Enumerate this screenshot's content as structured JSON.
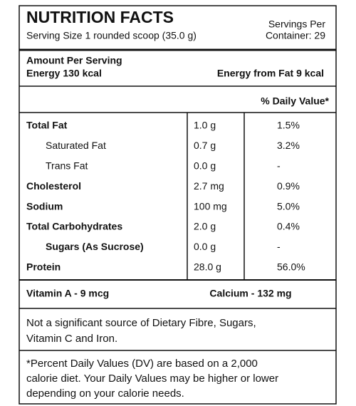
{
  "header": {
    "title": "NUTRITION FACTS",
    "serving_size": "Serving Size 1 rounded scoop (35.0 g)",
    "servings_per": [
      "Servings Per",
      "Container: 29"
    ]
  },
  "amount": {
    "heading": "Amount Per Serving",
    "energy": "Energy 130 kcal",
    "energy_from_fat": "Energy from Fat 9 kcal"
  },
  "table": {
    "header": "% Daily Value*",
    "rows": [
      [
        "Total Fat",
        "1.0 g",
        "1.5%"
      ],
      [
        "Saturated Fat",
        "0.7 g",
        "3.2%"
      ],
      [
        "Trans Fat",
        "0.0 g",
        "-"
      ],
      [
        "Cholesterol",
        "2.7 mg",
        "0.9%"
      ],
      [
        "Sodium",
        "100 mg",
        "5.0%"
      ],
      [
        "Total Carbohydrates",
        "2.0 g",
        "0.4%"
      ],
      [
        "Sugars (As Sucrose)",
        "0.0 g",
        "-"
      ],
      [
        "Protein",
        "28.0 g",
        "56.0%"
      ]
    ]
  },
  "minerals": {
    "vitamin_a": "Vitamin A - 9 mcg",
    "calcium": "Calcium - 132 mg"
  },
  "note": [
    "Not a significant source of Dietary Fibre, Sugars,",
    "Vitamin C and Iron."
  ],
  "dv_note": [
    "*Percent Daily Values (DV) are based on a 2,000",
    "calorie diet. Your Daily Values may be higher or lower",
    "depending on your calorie needs."
  ]
}
